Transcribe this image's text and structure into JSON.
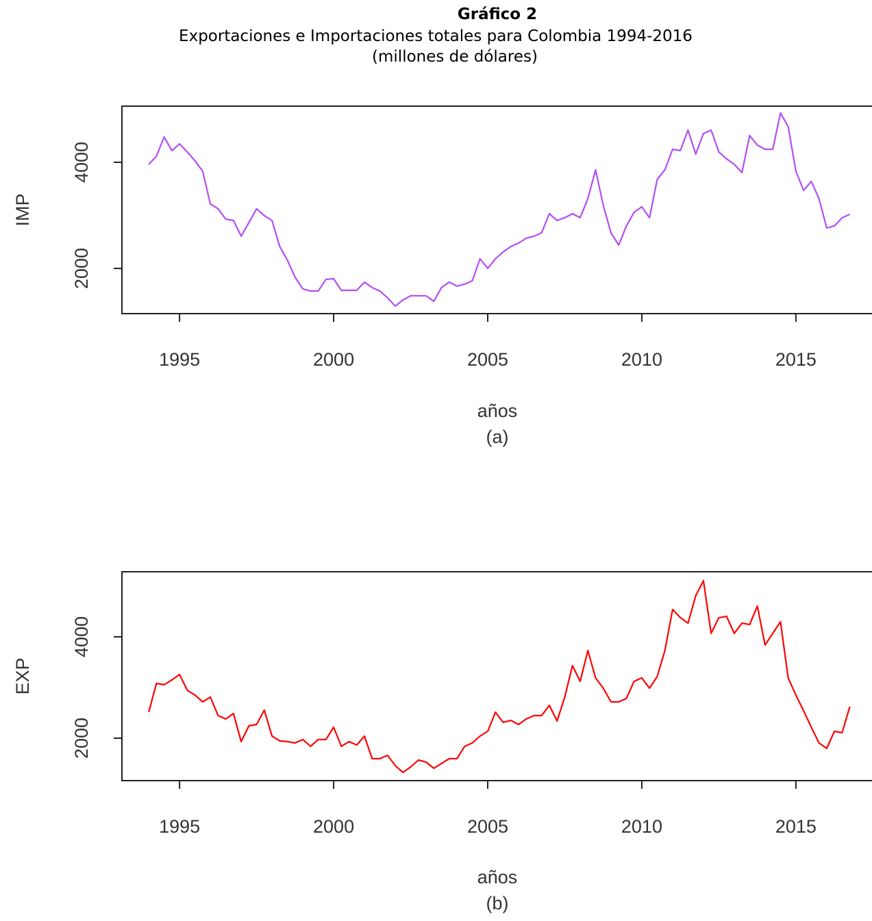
{
  "header": {
    "title": "Gráfico 2",
    "subtitle": [
      "Exportaciones e Importaciones totales para Colombia 1994-2016",
      "(millones de dólares)"
    ]
  },
  "chart_data": [
    {
      "type": "line",
      "ylabel": "IMP",
      "xlabel": "años",
      "caption": "(a)",
      "color": "#b34cf5",
      "x": [
        1994,
        1994.25,
        1994.5,
        1994.75,
        1995,
        1995.25,
        1995.5,
        1995.75,
        1996,
        1996.25,
        1996.5,
        1996.75,
        1997,
        1997.25,
        1997.5,
        1997.75,
        1998,
        1998.25,
        1998.5,
        1998.75,
        1999,
        1999.25,
        1999.5,
        1999.75,
        2000,
        2000.25,
        2000.5,
        2000.75,
        2001,
        2001.25,
        2001.5,
        2001.75,
        2002,
        2002.25,
        2002.5,
        2002.75,
        2003,
        2003.25,
        2003.5,
        2003.75,
        2004,
        2004.25,
        2004.5,
        2004.75,
        2005,
        2005.25,
        2005.5,
        2005.75,
        2006,
        2006.25,
        2006.5,
        2006.75,
        2007,
        2007.25,
        2007.5,
        2007.75,
        2008,
        2008.25,
        2008.5,
        2008.75,
        2009,
        2009.25,
        2009.5,
        2009.75,
        2010,
        2010.25,
        2010.5,
        2010.75,
        2011,
        2011.25,
        2011.5,
        2011.75,
        2012,
        2012.25,
        2012.5,
        2012.75,
        2013,
        2013.25,
        2013.5,
        2013.75,
        2014,
        2014.25,
        2014.5,
        2014.75,
        2015,
        2015.25,
        2015.5,
        2015.75,
        2016,
        2016.25,
        2016.5,
        2016.75
      ],
      "values": [
        3961,
        4116,
        4477,
        4219,
        4348,
        4194,
        4026,
        3832,
        3213,
        3123,
        2929,
        2903,
        2606,
        2865,
        3123,
        2994,
        2903,
        2413,
        2155,
        1832,
        1613,
        1574,
        1574,
        1794,
        1806,
        1587,
        1587,
        1587,
        1742,
        1639,
        1574,
        1445,
        1290,
        1406,
        1484,
        1484,
        1484,
        1381,
        1639,
        1742,
        1665,
        1703,
        1768,
        2181,
        2000,
        2181,
        2310,
        2413,
        2477,
        2568,
        2606,
        2671,
        3032,
        2903,
        2955,
        3032,
        2955,
        3316,
        3858,
        3187,
        2671,
        2439,
        2800,
        3058,
        3161,
        2955,
        3677,
        3858,
        4245,
        4219,
        4606,
        4155,
        4542,
        4606,
        4194,
        4065,
        3961,
        3806,
        4503,
        4323,
        4245,
        4245,
        4929,
        4671,
        3832,
        3471,
        3639,
        3316,
        2761,
        2800,
        2955,
        3019
      ],
      "xlim": [
        1993.13,
        2017.47
      ],
      "xticks": [
        1995,
        2000,
        2005,
        2010,
        2015
      ],
      "ylim": [
        1148,
        5058
      ],
      "yticks": [
        2000,
        4000
      ]
    },
    {
      "type": "line",
      "ylabel": "EXP",
      "xlabel": "años",
      "caption": "(b)",
      "color": "#ff0000",
      "x": [
        1994,
        1994.25,
        1994.5,
        1994.75,
        1995,
        1995.25,
        1995.5,
        1995.75,
        1996,
        1996.25,
        1996.5,
        1996.75,
        1997,
        1997.25,
        1997.5,
        1997.75,
        1998,
        1998.25,
        1998.5,
        1998.75,
        1999,
        1999.25,
        1999.5,
        1999.75,
        2000,
        2000.25,
        2000.5,
        2000.75,
        2001,
        2001.25,
        2001.5,
        2001.75,
        2002,
        2002.25,
        2002.5,
        2002.75,
        2003,
        2003.25,
        2003.5,
        2003.75,
        2004,
        2004.25,
        2004.5,
        2004.75,
        2005,
        2005.25,
        2005.5,
        2005.75,
        2006,
        2006.25,
        2006.5,
        2006.75,
        2007,
        2007.25,
        2007.5,
        2007.75,
        2008,
        2008.25,
        2008.5,
        2008.75,
        2009,
        2009.25,
        2009.5,
        2009.75,
        2010,
        2010.25,
        2010.5,
        2010.75,
        2011,
        2011.25,
        2011.5,
        2011.75,
        2012,
        2012.25,
        2012.5,
        2012.75,
        2013,
        2013.25,
        2013.5,
        2013.75,
        2014,
        2014.25,
        2014.5,
        2014.75,
        2015,
        2015.25,
        2015.5,
        2015.75,
        2016,
        2016.25,
        2016.5,
        2016.75
      ],
      "values": [
        2514,
        3081,
        3054,
        3149,
        3257,
        2946,
        2851,
        2716,
        2811,
        2446,
        2378,
        2486,
        1932,
        2243,
        2270,
        2554,
        2041,
        1946,
        1932,
        1905,
        1973,
        1838,
        1973,
        1973,
        2216,
        1838,
        1932,
        1865,
        2041,
        1595,
        1595,
        1662,
        1459,
        1324,
        1432,
        1568,
        1527,
        1405,
        1500,
        1595,
        1595,
        1838,
        1905,
        2041,
        2135,
        2514,
        2311,
        2351,
        2270,
        2378,
        2446,
        2446,
        2649,
        2338,
        2811,
        3432,
        3122,
        3730,
        3189,
        2986,
        2716,
        2716,
        2784,
        3122,
        3189,
        2986,
        3216,
        3730,
        4541,
        4378,
        4270,
        4811,
        5108,
        4068,
        4378,
        4405,
        4068,
        4270,
        4243,
        4608,
        3838,
        4068,
        4297,
        3189,
        2851,
        2541,
        2216,
        1905,
        1797,
        2135,
        2108,
        2622
      ],
      "xlim": [
        1993.13,
        2017.47
      ],
      "xticks": [
        1995,
        2000,
        2005,
        2010,
        2015
      ],
      "ylim": [
        1162,
        5284
      ],
      "yticks": [
        2000,
        4000
      ]
    }
  ]
}
